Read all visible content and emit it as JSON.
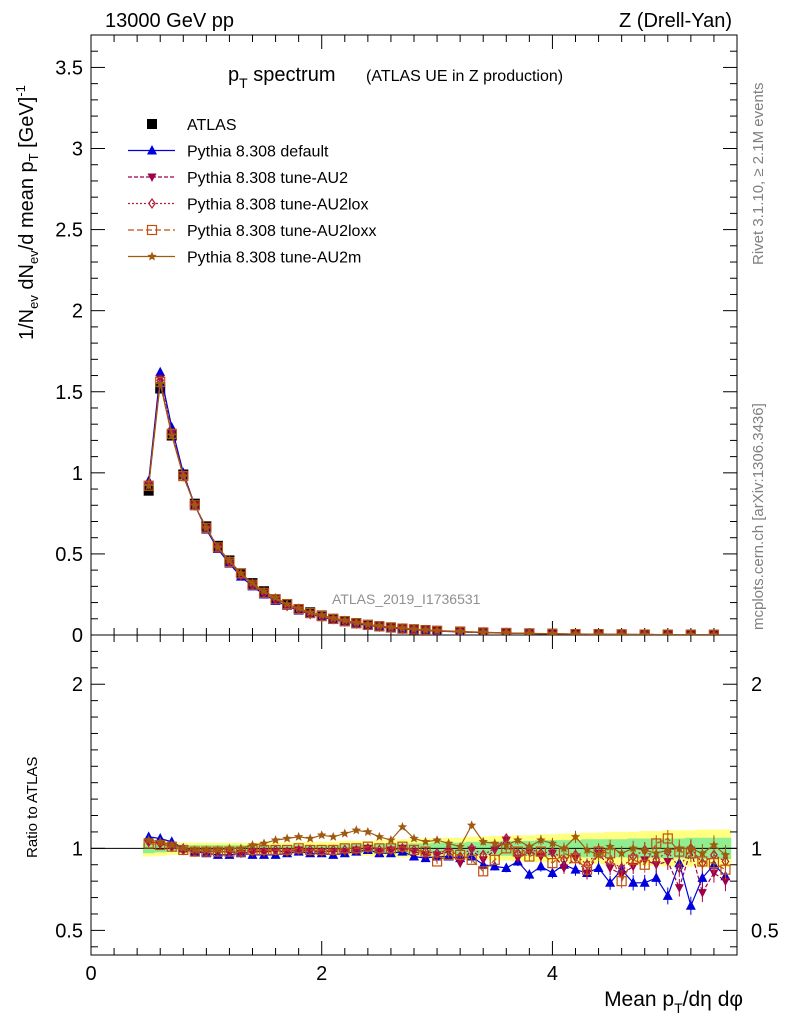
{
  "header": {
    "left": "13000 GeV pp",
    "right": "Z (Drell-Yan)"
  },
  "side_text": {
    "rivet": "Rivet 3.1.10, ≥ 2.1M events",
    "mcplots": "mcplots.cern.ch [arXiv:1306.3436]"
  },
  "chart_data": [
    {
      "type": "line",
      "panel": "main",
      "title": "p",
      "title_sub": "T",
      "title_rest": " spectrum",
      "subtitle": "(ATLAS UE in Z production)",
      "watermark": "ATLAS_2019_I1736531",
      "ylabel_parts": [
        "1/N",
        "ev",
        " dN",
        "ev",
        "/d mean p",
        "T",
        " [GeV]",
        "-1"
      ],
      "xlim": [
        0,
        5.6
      ],
      "ylim": [
        0,
        3.7
      ],
      "yticks": [
        0,
        0.5,
        1,
        1.5,
        2,
        2.5,
        3,
        3.5
      ],
      "ytick_labels": [
        "0",
        "0.5",
        "1",
        "1.5",
        "2",
        "2.5",
        "3",
        "3.5"
      ],
      "x": [
        0.5,
        0.6,
        0.7,
        0.8,
        0.9,
        1.0,
        1.1,
        1.2,
        1.3,
        1.4,
        1.5,
        1.6,
        1.7,
        1.8,
        1.9,
        2.0,
        2.1,
        2.2,
        2.3,
        2.4,
        2.5,
        2.6,
        2.7,
        2.8,
        2.9,
        3.0,
        3.2,
        3.4,
        3.6,
        3.8,
        4.0,
        4.2,
        4.4,
        4.6,
        4.8,
        5.0,
        5.2,
        5.4
      ],
      "series": [
        {
          "name": "ATLAS",
          "color": "#000000",
          "marker": "square",
          "values": [
            0.89,
            1.52,
            1.23,
            0.99,
            0.81,
            0.67,
            0.55,
            0.46,
            0.38,
            0.32,
            0.27,
            0.22,
            0.19,
            0.16,
            0.14,
            0.12,
            0.1,
            0.085,
            0.073,
            0.063,
            0.054,
            0.047,
            0.04,
            0.035,
            0.03,
            0.026,
            0.021,
            0.016,
            0.013,
            0.01,
            0.008,
            0.006,
            0.005,
            0.004,
            0.003,
            0.0025,
            0.002,
            0.0015
          ]
        },
        {
          "name": "Pythia 8.308 default",
          "color": "#0000dd",
          "marker": "triangle-up",
          "values": [
            0.95,
            1.62,
            1.28,
            1.0,
            0.8,
            0.65,
            0.53,
            0.44,
            0.36,
            0.3,
            0.25,
            0.21,
            0.18,
            0.15,
            0.13,
            0.11,
            0.095,
            0.081,
            0.069,
            0.059,
            0.05,
            0.043,
            0.037,
            0.032,
            0.028,
            0.024,
            0.019,
            0.015,
            0.012,
            0.009,
            0.007,
            0.005,
            0.004,
            0.003,
            0.0025,
            0.002,
            0.0016,
            0.0012
          ]
        },
        {
          "name": "Pythia 8.308 tune-AU2",
          "color": "#a0004a",
          "marker": "triangle-down",
          "values": [
            0.93,
            1.58,
            1.25,
            0.99,
            0.8,
            0.66,
            0.54,
            0.45,
            0.37,
            0.31,
            0.26,
            0.22,
            0.18,
            0.16,
            0.13,
            0.115,
            0.098,
            0.083,
            0.071,
            0.061,
            0.052,
            0.045,
            0.039,
            0.034,
            0.029,
            0.025,
            0.02,
            0.015,
            0.012,
            0.009,
            0.007,
            0.005,
            0.004,
            0.0035,
            0.0028,
            0.0022,
            0.0017,
            0.0012
          ]
        },
        {
          "name": "Pythia 8.308 tune-AU2lox",
          "color": "#b0203a",
          "marker": "diamond",
          "values": [
            0.93,
            1.57,
            1.24,
            0.98,
            0.8,
            0.66,
            0.54,
            0.45,
            0.37,
            0.31,
            0.26,
            0.22,
            0.18,
            0.16,
            0.13,
            0.115,
            0.098,
            0.084,
            0.071,
            0.061,
            0.052,
            0.045,
            0.039,
            0.034,
            0.029,
            0.025,
            0.02,
            0.016,
            0.012,
            0.009,
            0.007,
            0.0055,
            0.0045,
            0.0035,
            0.0028,
            0.0022,
            0.0017,
            0.0013
          ]
        },
        {
          "name": "Pythia 8.308 tune-AU2loxx",
          "color": "#c05010",
          "marker": "open-square",
          "values": [
            0.92,
            1.56,
            1.24,
            0.98,
            0.8,
            0.66,
            0.54,
            0.45,
            0.38,
            0.31,
            0.26,
            0.22,
            0.19,
            0.16,
            0.135,
            0.117,
            0.099,
            0.085,
            0.072,
            0.062,
            0.053,
            0.046,
            0.039,
            0.034,
            0.029,
            0.025,
            0.02,
            0.015,
            0.012,
            0.009,
            0.007,
            0.0055,
            0.0044,
            0.0034,
            0.0028,
            0.0022,
            0.0017,
            0.0013
          ]
        },
        {
          "name": "Pythia 8.308 tune-AU2m",
          "color": "#a05a10",
          "marker": "star",
          "values": [
            0.92,
            1.55,
            1.23,
            0.98,
            0.8,
            0.66,
            0.54,
            0.46,
            0.38,
            0.32,
            0.27,
            0.23,
            0.19,
            0.165,
            0.14,
            0.122,
            0.104,
            0.09,
            0.076,
            0.066,
            0.056,
            0.048,
            0.043,
            0.036,
            0.031,
            0.027,
            0.022,
            0.017,
            0.013,
            0.01,
            0.008,
            0.006,
            0.0048,
            0.0037,
            0.003,
            0.0024,
            0.0019,
            0.0014
          ]
        }
      ]
    },
    {
      "type": "line",
      "panel": "ratio",
      "ylabel": "Ratio to ATLAS",
      "xlabel_parts": [
        "Mean p",
        "T",
        "/dη dφ"
      ],
      "xlim": [
        0,
        5.6
      ],
      "ylim": [
        0.35,
        2.3
      ],
      "xticks": [
        0,
        2,
        4
      ],
      "xtick_labels": [
        "0",
        "2",
        "4"
      ],
      "yticks": [
        0.5,
        1,
        2
      ],
      "ytick_labels": [
        "0.5",
        "1",
        "2"
      ],
      "x": [
        0.5,
        0.6,
        0.7,
        0.8,
        0.9,
        1.0,
        1.1,
        1.2,
        1.3,
        1.4,
        1.5,
        1.6,
        1.7,
        1.8,
        1.9,
        2.0,
        2.1,
        2.2,
        2.3,
        2.4,
        2.5,
        2.6,
        2.7,
        2.8,
        2.9,
        3.0,
        3.1,
        3.2,
        3.3,
        3.4,
        3.5,
        3.6,
        3.7,
        3.8,
        3.9,
        4.0,
        4.1,
        4.2,
        4.3,
        4.4,
        4.5,
        4.6,
        4.7,
        4.8,
        4.9,
        5.0,
        5.1,
        5.2,
        5.3,
        5.4,
        5.5
      ],
      "band_inner": [
        0.03,
        0.025,
        0.02,
        0.02,
        0.02,
        0.02,
        0.02,
        0.02,
        0.02,
        0.02,
        0.02,
        0.02,
        0.02,
        0.02,
        0.02,
        0.02,
        0.02,
        0.025,
        0.025,
        0.025,
        0.025,
        0.03,
        0.03,
        0.03,
        0.03,
        0.035,
        0.035,
        0.035,
        0.04,
        0.04,
        0.04,
        0.045,
        0.045,
        0.045,
        0.05,
        0.05,
        0.05,
        0.05,
        0.055,
        0.055,
        0.055,
        0.055,
        0.06,
        0.06,
        0.06,
        0.06,
        0.06,
        0.065,
        0.065,
        0.065,
        0.065
      ],
      "band_outer": [
        0.05,
        0.045,
        0.04,
        0.035,
        0.035,
        0.035,
        0.035,
        0.035,
        0.035,
        0.035,
        0.035,
        0.035,
        0.035,
        0.04,
        0.04,
        0.04,
        0.04,
        0.045,
        0.045,
        0.045,
        0.05,
        0.05,
        0.055,
        0.055,
        0.06,
        0.06,
        0.065,
        0.065,
        0.07,
        0.07,
        0.075,
        0.075,
        0.08,
        0.08,
        0.085,
        0.085,
        0.09,
        0.09,
        0.095,
        0.095,
        0.1,
        0.1,
        0.1,
        0.105,
        0.105,
        0.11,
        0.11,
        0.11,
        0.115,
        0.115,
        0.115
      ],
      "series": [
        {
          "name": "Pythia 8.308 default",
          "color": "#0000dd",
          "marker": "triangle-up",
          "values": [
            1.07,
            1.06,
            1.04,
            1.0,
            0.98,
            0.97,
            0.96,
            0.96,
            0.97,
            0.96,
            0.96,
            0.96,
            0.97,
            0.98,
            0.97,
            0.97,
            0.96,
            0.97,
            0.98,
            0.99,
            0.97,
            0.97,
            0.98,
            0.95,
            0.94,
            0.95,
            0.95,
            0.94,
            0.95,
            0.9,
            0.89,
            0.88,
            0.92,
            0.84,
            0.89,
            0.85,
            0.9,
            0.87,
            0.85,
            0.88,
            0.79,
            0.87,
            0.79,
            0.79,
            0.82,
            0.71,
            0.91,
            0.65,
            0.82,
            0.9,
            0.83
          ]
        },
        {
          "name": "Pythia 8.308 tune-AU2",
          "color": "#a0004a",
          "marker": "triangle-down",
          "values": [
            1.04,
            1.03,
            1.01,
            0.99,
            0.98,
            0.98,
            0.98,
            0.98,
            0.97,
            0.98,
            0.98,
            0.98,
            0.98,
            0.99,
            0.98,
            0.98,
            0.98,
            0.98,
            0.99,
            1.0,
            0.98,
            0.99,
            1.0,
            0.98,
            0.96,
            0.96,
            0.98,
            0.91,
            0.99,
            0.93,
            0.99,
            1.05,
            0.94,
            0.98,
            0.95,
            0.97,
            0.88,
            0.94,
            0.85,
            0.97,
            0.88,
            0.84,
            0.89,
            0.93,
            0.9,
            0.92,
            0.76,
            0.99,
            0.73,
            0.85,
            0.8
          ]
        },
        {
          "name": "Pythia 8.308 tune-AU2lox",
          "color": "#b0203a",
          "marker": "diamond",
          "values": [
            1.04,
            1.03,
            1.01,
            0.99,
            0.98,
            0.98,
            0.98,
            0.98,
            0.98,
            0.98,
            0.98,
            0.99,
            0.98,
            0.99,
            0.99,
            0.98,
            0.99,
            0.99,
            0.99,
            1.0,
            0.99,
            0.99,
            1.0,
            0.99,
            0.98,
            0.97,
            0.99,
            0.95,
            1.0,
            0.96,
            1.0,
            1.06,
            0.97,
            1.0,
            0.97,
            0.98,
            0.93,
            0.96,
            0.9,
            0.99,
            0.92,
            0.88,
            0.95,
            0.99,
            0.93,
            0.98,
            0.88,
            1.0,
            0.91,
            0.96,
            0.92
          ]
        },
        {
          "name": "Pythia 8.308 tune-AU2loxx",
          "color": "#c05010",
          "marker": "open-square",
          "values": [
            1.03,
            1.02,
            1.01,
            0.99,
            0.98,
            0.98,
            0.98,
            0.98,
            0.98,
            0.99,
            0.99,
            0.99,
            0.99,
            1.0,
            0.99,
            0.99,
            0.99,
            1.0,
            1.0,
            1.01,
            1.0,
            1.0,
            1.01,
            0.99,
            0.98,
            0.92,
            0.96,
            0.96,
            0.93,
            0.86,
            0.93,
            1.0,
            0.98,
            0.95,
            0.98,
            0.91,
            0.97,
            0.94,
            0.87,
            0.98,
            0.97,
            0.8,
            0.93,
            0.9,
            1.03,
            1.06,
            0.98,
            0.97,
            0.92,
            0.91,
            0.87
          ]
        },
        {
          "name": "Pythia 8.308 tune-AU2m",
          "color": "#a05a10",
          "marker": "star",
          "values": [
            1.05,
            1.04,
            1.02,
            1.0,
            0.99,
            0.99,
            0.99,
            1.0,
            1.0,
            1.02,
            1.03,
            1.05,
            1.06,
            1.07,
            1.06,
            1.08,
            1.07,
            1.09,
            1.11,
            1.1,
            1.07,
            1.05,
            1.13,
            1.06,
            1.04,
            1.05,
            1.03,
            1.01,
            1.14,
            1.04,
            1.03,
            1.02,
            1.05,
            1.01,
            1.05,
            1.03,
            1.0,
            1.07,
            0.99,
            0.96,
            1.01,
            0.97,
            1.0,
            0.99,
            0.97,
            0.99,
            1.0,
            1.0,
            0.97,
            1.02,
            0.96
          ]
        }
      ]
    }
  ]
}
